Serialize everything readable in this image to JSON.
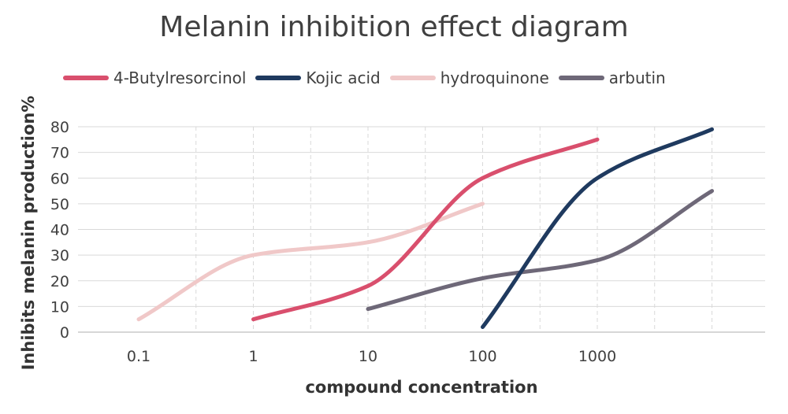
{
  "chart_data": {
    "type": "line",
    "title": "Melanin inhibition effect diagram",
    "xlabel": "compound concentration",
    "ylabel": "Inhibits melanin production%",
    "x_categories": [
      "0.1",
      "1",
      "10",
      "100",
      "1000",
      ""
    ],
    "ylim": [
      0,
      80
    ],
    "yticks": [
      "0",
      "10",
      "20",
      "30",
      "40",
      "50",
      "60",
      "70",
      "80"
    ],
    "grid": true,
    "legend_position": "top",
    "series": [
      {
        "name": "4-Butylresorcinol",
        "color": "#D94F6D",
        "points": [
          [
            1,
            5
          ],
          [
            10,
            18
          ],
          [
            100,
            60
          ],
          [
            1000,
            75
          ]
        ]
      },
      {
        "name": "Kojic acid",
        "color": "#1F3A5F",
        "points": [
          [
            100,
            2
          ],
          [
            1000,
            60
          ],
          [
            10000,
            79
          ]
        ]
      },
      {
        "name": "hydroquinone",
        "color": "#F0C8C8",
        "points": [
          [
            0.1,
            5
          ],
          [
            1,
            30
          ],
          [
            10,
            35
          ],
          [
            100,
            50
          ]
        ]
      },
      {
        "name": "arbutin",
        "color": "#6E6878",
        "points": [
          [
            10,
            9
          ],
          [
            100,
            21
          ],
          [
            1000,
            28
          ],
          [
            10000,
            55
          ]
        ]
      }
    ]
  }
}
